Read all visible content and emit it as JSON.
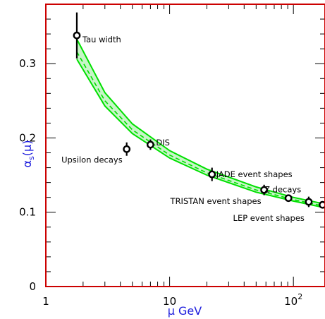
{
  "chart_data": {
    "type": "scatter",
    "xlabel": "μ GeV",
    "ylabel": "αs(μ)",
    "x_scale": "log",
    "xlim": [
      1,
      180
    ],
    "ylim": [
      0,
      0.38
    ],
    "x_ticks": [
      {
        "value": 1,
        "label": "1"
      },
      {
        "value": 10,
        "label": "10"
      },
      {
        "value": 100,
        "label": "10",
        "exponent": "2"
      }
    ],
    "y_ticks": [
      {
        "value": 0,
        "label": "0"
      },
      {
        "value": 0.1,
        "label": "0.1"
      },
      {
        "value": 0.2,
        "label": "0.2"
      },
      {
        "value": 0.3,
        "label": "0.3"
      }
    ],
    "points": [
      {
        "label": "Tau width",
        "x": 1.78,
        "y": 0.338,
        "err": 0.031
      },
      {
        "label": "Upsilon decays",
        "x": 4.5,
        "y": 0.185,
        "err": 0.009
      },
      {
        "label": "DIS",
        "x": 7.0,
        "y": 0.191,
        "err": 0.007
      },
      {
        "label": "JADE event shapes",
        "x": 22.0,
        "y": 0.151,
        "err": 0.009
      },
      {
        "label": "TRISTAN event shapes",
        "x": 58.0,
        "y": 0.13,
        "err": 0.007
      },
      {
        "label": "Z decays",
        "x": 91.2,
        "y": 0.119,
        "err": 0.003
      },
      {
        "label": "LEP event shapes",
        "x": 133.0,
        "y": 0.114,
        "err": 0.007
      },
      {
        "label": "",
        "x": 172.0,
        "y": 0.11,
        "err": 0.004
      }
    ],
    "band": {
      "center": [
        [
          1.78,
          0.316
        ],
        [
          3,
          0.25
        ],
        [
          5,
          0.211
        ],
        [
          10,
          0.177
        ],
        [
          20,
          0.153
        ],
        [
          50,
          0.13
        ],
        [
          100,
          0.117
        ],
        [
          180,
          0.108
        ]
      ],
      "lower": [
        [
          1.78,
          0.306
        ],
        [
          3,
          0.243
        ],
        [
          5,
          0.206
        ],
        [
          10,
          0.173
        ],
        [
          20,
          0.15
        ],
        [
          50,
          0.127
        ],
        [
          100,
          0.115
        ],
        [
          180,
          0.106
        ]
      ],
      "upper": [
        [
          1.78,
          0.333
        ],
        [
          3,
          0.261
        ],
        [
          5,
          0.219
        ],
        [
          10,
          0.183
        ],
        [
          20,
          0.158
        ],
        [
          50,
          0.134
        ],
        [
          100,
          0.12
        ],
        [
          180,
          0.111
        ]
      ]
    },
    "colors": {
      "frame": "#cc0000",
      "band": "#00e000",
      "axis_title": "#1a1adc",
      "points": "#000000"
    },
    "grid": false
  }
}
